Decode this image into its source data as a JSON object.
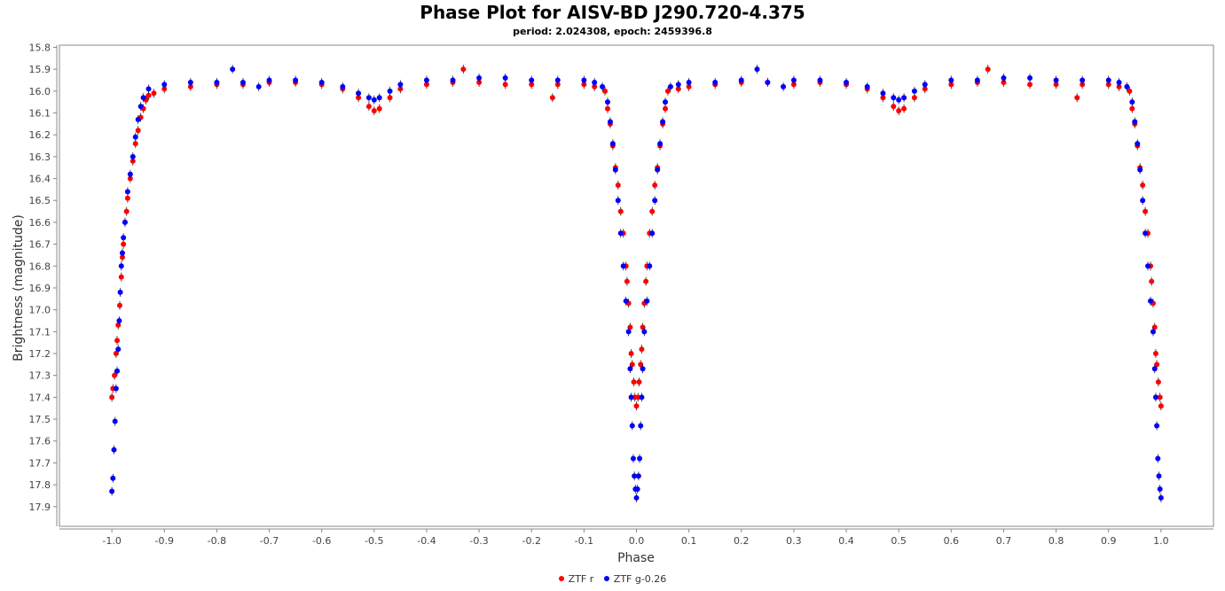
{
  "chart_data": {
    "type": "scatter",
    "title": "Phase Plot for AISV-BD J290.720-4.375",
    "subtitle": "period: 2.024308, epoch: 2459396.8",
    "xlabel": "Phase",
    "ylabel": "Brightness (magnitude)",
    "xlim": [
      -1.1,
      1.1
    ],
    "ylim": [
      17.99,
      15.79
    ],
    "y_inverted": true,
    "x_ticks": [
      "-1.0",
      "-0.9",
      "-0.8",
      "-0.7",
      "-0.6",
      "-0.5",
      "-0.4",
      "-0.3",
      "-0.2",
      "-0.1",
      "0.0",
      "0.1",
      "0.2",
      "0.3",
      "0.4",
      "0.5",
      "0.6",
      "0.7",
      "0.8",
      "0.9",
      "1.0"
    ],
    "y_ticks": [
      "15.8",
      "15.9",
      "16.0",
      "16.1",
      "16.2",
      "16.3",
      "16.4",
      "16.5",
      "16.6",
      "16.7",
      "16.8",
      "16.9",
      "17.0",
      "17.1",
      "17.2",
      "17.3",
      "17.4",
      "17.5",
      "17.6",
      "17.7",
      "17.8",
      "17.9"
    ],
    "grid": false,
    "legend_position": "bottom-center",
    "series": [
      {
        "name": "ZTF r",
        "color": "#ff0000",
        "points": [
          [
            -1.0,
            17.4
          ],
          [
            -0.998,
            17.36
          ],
          [
            -0.995,
            17.3
          ],
          [
            -0.992,
            17.2
          ],
          [
            -0.99,
            17.14
          ],
          [
            -0.988,
            17.07
          ],
          [
            -0.985,
            16.98
          ],
          [
            -0.982,
            16.85
          ],
          [
            -0.98,
            16.76
          ],
          [
            -0.978,
            16.7
          ],
          [
            -0.975,
            16.6
          ],
          [
            -0.972,
            16.55
          ],
          [
            -0.97,
            16.49
          ],
          [
            -0.965,
            16.4
          ],
          [
            -0.96,
            16.32
          ],
          [
            -0.955,
            16.24
          ],
          [
            -0.95,
            16.18
          ],
          [
            -0.945,
            16.12
          ],
          [
            -0.94,
            16.08
          ],
          [
            -0.935,
            16.04
          ],
          [
            -0.93,
            16.02
          ],
          [
            -0.92,
            16.01
          ],
          [
            -0.9,
            15.99
          ],
          [
            -0.85,
            15.98
          ],
          [
            -0.8,
            15.97
          ],
          [
            -0.75,
            15.97
          ],
          [
            -0.7,
            15.96
          ],
          [
            -0.65,
            15.96
          ],
          [
            -0.6,
            15.97
          ],
          [
            -0.56,
            15.99
          ],
          [
            -0.53,
            16.03
          ],
          [
            -0.51,
            16.07
          ],
          [
            -0.5,
            16.09
          ],
          [
            -0.49,
            16.08
          ],
          [
            -0.47,
            16.03
          ],
          [
            -0.45,
            15.99
          ],
          [
            -0.4,
            15.97
          ],
          [
            -0.35,
            15.96
          ],
          [
            -0.33,
            15.9
          ],
          [
            -0.3,
            15.96
          ],
          [
            -0.25,
            15.97
          ],
          [
            -0.2,
            15.97
          ],
          [
            -0.16,
            16.03
          ],
          [
            -0.15,
            15.97
          ],
          [
            -0.1,
            15.97
          ],
          [
            -0.08,
            15.98
          ],
          [
            -0.06,
            16.0
          ],
          [
            -0.055,
            16.08
          ],
          [
            -0.05,
            16.15
          ],
          [
            -0.045,
            16.25
          ],
          [
            -0.04,
            16.35
          ],
          [
            -0.035,
            16.43
          ],
          [
            -0.03,
            16.55
          ],
          [
            -0.025,
            16.65
          ],
          [
            -0.02,
            16.8
          ],
          [
            -0.018,
            16.87
          ],
          [
            -0.015,
            16.97
          ],
          [
            -0.012,
            17.08
          ],
          [
            -0.01,
            17.2
          ],
          [
            -0.008,
            17.25
          ],
          [
            -0.005,
            17.33
          ],
          [
            -0.003,
            17.4
          ],
          [
            0.0,
            17.44
          ],
          [
            0.003,
            17.4
          ],
          [
            0.005,
            17.33
          ],
          [
            0.008,
            17.25
          ],
          [
            0.01,
            17.18
          ],
          [
            0.012,
            17.08
          ],
          [
            0.015,
            16.97
          ],
          [
            0.018,
            16.87
          ],
          [
            0.02,
            16.8
          ],
          [
            0.025,
            16.65
          ],
          [
            0.03,
            16.55
          ],
          [
            0.035,
            16.43
          ],
          [
            0.04,
            16.35
          ],
          [
            0.045,
            16.25
          ],
          [
            0.05,
            16.15
          ],
          [
            0.055,
            16.08
          ],
          [
            0.06,
            16.0
          ],
          [
            0.08,
            15.99
          ],
          [
            0.1,
            15.98
          ],
          [
            0.15,
            15.97
          ],
          [
            0.2,
            15.96
          ],
          [
            0.25,
            15.96
          ],
          [
            0.3,
            15.97
          ],
          [
            0.35,
            15.96
          ],
          [
            0.4,
            15.97
          ],
          [
            0.44,
            15.99
          ],
          [
            0.47,
            16.03
          ],
          [
            0.49,
            16.07
          ],
          [
            0.5,
            16.09
          ],
          [
            0.51,
            16.08
          ],
          [
            0.53,
            16.03
          ],
          [
            0.55,
            15.99
          ],
          [
            0.6,
            15.97
          ],
          [
            0.65,
            15.96
          ],
          [
            0.67,
            15.9
          ],
          [
            0.7,
            15.96
          ],
          [
            0.75,
            15.97
          ],
          [
            0.8,
            15.97
          ],
          [
            0.84,
            16.03
          ],
          [
            0.85,
            15.97
          ],
          [
            0.9,
            15.97
          ],
          [
            0.92,
            15.98
          ],
          [
            0.94,
            16.0
          ],
          [
            0.945,
            16.08
          ],
          [
            0.95,
            16.15
          ],
          [
            0.955,
            16.25
          ],
          [
            0.96,
            16.35
          ],
          [
            0.965,
            16.43
          ],
          [
            0.97,
            16.55
          ],
          [
            0.975,
            16.65
          ],
          [
            0.98,
            16.8
          ],
          [
            0.982,
            16.87
          ],
          [
            0.985,
            16.97
          ],
          [
            0.988,
            17.08
          ],
          [
            0.99,
            17.2
          ],
          [
            0.992,
            17.25
          ],
          [
            0.995,
            17.33
          ],
          [
            0.998,
            17.4
          ],
          [
            1.0,
            17.44
          ]
        ]
      },
      {
        "name": "ZTF g-0.26",
        "color": "#0000ff",
        "points": [
          [
            -1.0,
            17.83
          ],
          [
            -0.998,
            17.77
          ],
          [
            -0.996,
            17.64
          ],
          [
            -0.994,
            17.51
          ],
          [
            -0.992,
            17.36
          ],
          [
            -0.99,
            17.28
          ],
          [
            -0.988,
            17.18
          ],
          [
            -0.986,
            17.05
          ],
          [
            -0.984,
            16.92
          ],
          [
            -0.982,
            16.8
          ],
          [
            -0.98,
            16.74
          ],
          [
            -0.978,
            16.67
          ],
          [
            -0.975,
            16.6
          ],
          [
            -0.97,
            16.46
          ],
          [
            -0.965,
            16.38
          ],
          [
            -0.96,
            16.3
          ],
          [
            -0.955,
            16.21
          ],
          [
            -0.95,
            16.13
          ],
          [
            -0.945,
            16.07
          ],
          [
            -0.94,
            16.03
          ],
          [
            -0.93,
            15.99
          ],
          [
            -0.9,
            15.97
          ],
          [
            -0.85,
            15.96
          ],
          [
            -0.8,
            15.96
          ],
          [
            -0.77,
            15.9
          ],
          [
            -0.75,
            15.96
          ],
          [
            -0.72,
            15.98
          ],
          [
            -0.7,
            15.95
          ],
          [
            -0.65,
            15.95
          ],
          [
            -0.6,
            15.96
          ],
          [
            -0.56,
            15.98
          ],
          [
            -0.53,
            16.01
          ],
          [
            -0.51,
            16.03
          ],
          [
            -0.5,
            16.04
          ],
          [
            -0.49,
            16.03
          ],
          [
            -0.47,
            16.0
          ],
          [
            -0.45,
            15.97
          ],
          [
            -0.4,
            15.95
          ],
          [
            -0.35,
            15.95
          ],
          [
            -0.3,
            15.94
          ],
          [
            -0.25,
            15.94
          ],
          [
            -0.2,
            15.95
          ],
          [
            -0.15,
            15.95
          ],
          [
            -0.1,
            15.95
          ],
          [
            -0.08,
            15.96
          ],
          [
            -0.065,
            15.98
          ],
          [
            -0.055,
            16.05
          ],
          [
            -0.05,
            16.14
          ],
          [
            -0.045,
            16.24
          ],
          [
            -0.04,
            16.36
          ],
          [
            -0.035,
            16.5
          ],
          [
            -0.03,
            16.65
          ],
          [
            -0.025,
            16.8
          ],
          [
            -0.02,
            16.96
          ],
          [
            -0.015,
            17.1
          ],
          [
            -0.012,
            17.27
          ],
          [
            -0.01,
            17.4
          ],
          [
            -0.008,
            17.53
          ],
          [
            -0.006,
            17.68
          ],
          [
            -0.004,
            17.76
          ],
          [
            -0.002,
            17.82
          ],
          [
            0.0,
            17.86
          ],
          [
            0.002,
            17.82
          ],
          [
            0.004,
            17.76
          ],
          [
            0.006,
            17.68
          ],
          [
            0.008,
            17.53
          ],
          [
            0.01,
            17.4
          ],
          [
            0.012,
            17.27
          ],
          [
            0.015,
            17.1
          ],
          [
            0.02,
            16.96
          ],
          [
            0.025,
            16.8
          ],
          [
            0.03,
            16.65
          ],
          [
            0.035,
            16.5
          ],
          [
            0.04,
            16.36
          ],
          [
            0.045,
            16.24
          ],
          [
            0.05,
            16.14
          ],
          [
            0.055,
            16.05
          ],
          [
            0.065,
            15.98
          ],
          [
            0.08,
            15.97
          ],
          [
            0.1,
            15.96
          ],
          [
            0.15,
            15.96
          ],
          [
            0.2,
            15.95
          ],
          [
            0.23,
            15.9
          ],
          [
            0.25,
            15.96
          ],
          [
            0.28,
            15.98
          ],
          [
            0.3,
            15.95
          ],
          [
            0.35,
            15.95
          ],
          [
            0.4,
            15.96
          ],
          [
            0.44,
            15.98
          ],
          [
            0.47,
            16.01
          ],
          [
            0.49,
            16.03
          ],
          [
            0.5,
            16.04
          ],
          [
            0.51,
            16.03
          ],
          [
            0.53,
            16.0
          ],
          [
            0.55,
            15.97
          ],
          [
            0.6,
            15.95
          ],
          [
            0.65,
            15.95
          ],
          [
            0.7,
            15.94
          ],
          [
            0.75,
            15.94
          ],
          [
            0.8,
            15.95
          ],
          [
            0.85,
            15.95
          ],
          [
            0.9,
            15.95
          ],
          [
            0.92,
            15.96
          ],
          [
            0.935,
            15.98
          ],
          [
            0.945,
            16.05
          ],
          [
            0.95,
            16.14
          ],
          [
            0.955,
            16.24
          ],
          [
            0.96,
            16.36
          ],
          [
            0.965,
            16.5
          ],
          [
            0.97,
            16.65
          ],
          [
            0.975,
            16.8
          ],
          [
            0.98,
            16.96
          ],
          [
            0.985,
            17.1
          ],
          [
            0.988,
            17.27
          ],
          [
            0.99,
            17.4
          ],
          [
            0.992,
            17.53
          ],
          [
            0.994,
            17.68
          ],
          [
            0.996,
            17.76
          ],
          [
            0.998,
            17.82
          ],
          [
            1.0,
            17.86
          ]
        ]
      }
    ]
  }
}
